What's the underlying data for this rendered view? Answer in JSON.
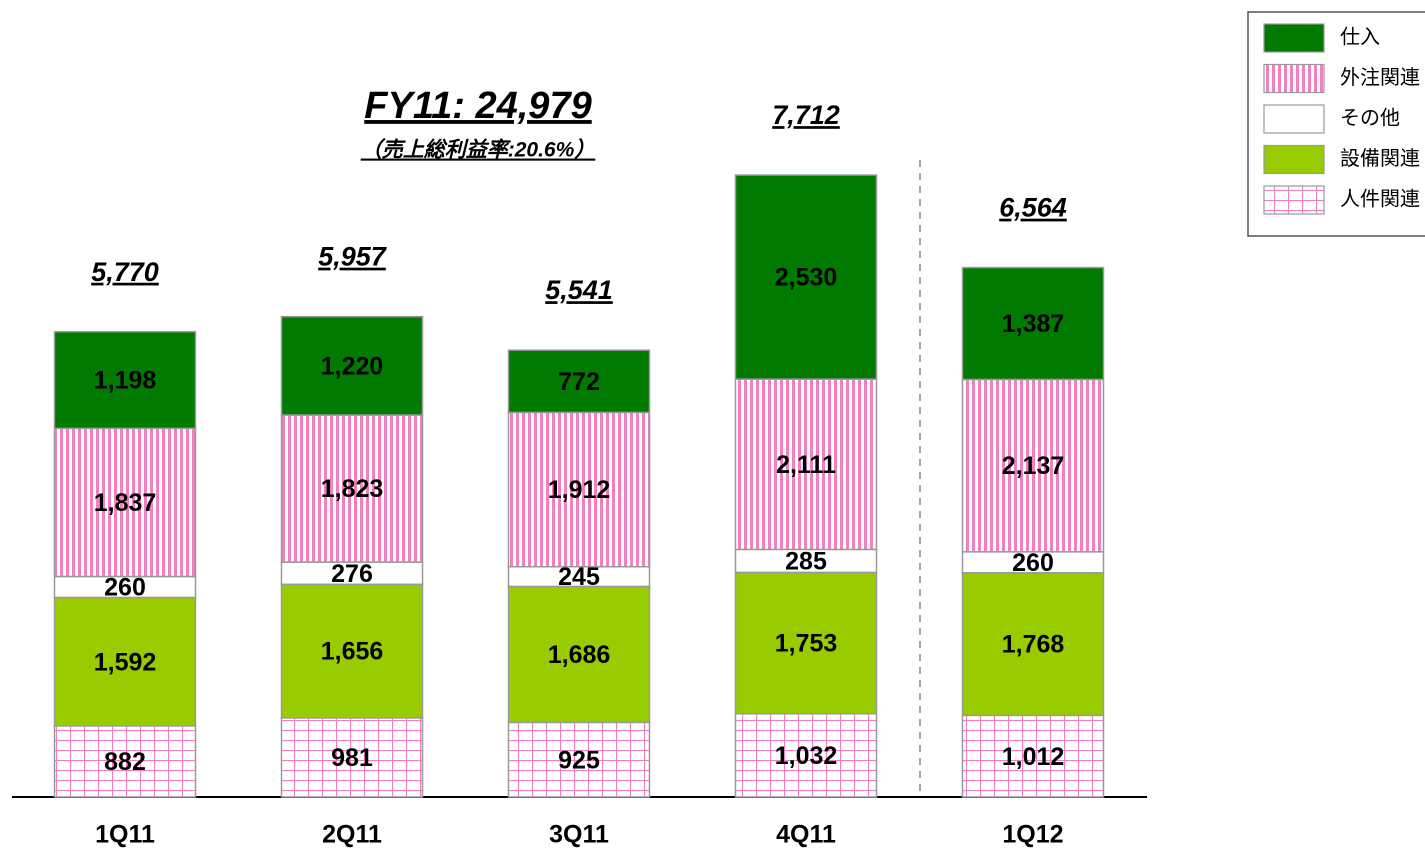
{
  "chart_data": {
    "type": "stacked-bar",
    "annotation": "FY11: 24,979",
    "annotation_sub": "（売上総利益率:20.6%）",
    "categories": [
      "1Q11",
      "2Q11",
      "3Q11",
      "4Q11",
      "1Q12"
    ],
    "series": [
      {
        "name": "人件関連",
        "color": "#f080c0",
        "values": [
          882,
          981,
          925,
          1032,
          1012
        ],
        "value_labels": [
          "882",
          "981",
          "925",
          "1,032",
          "1,012"
        ]
      },
      {
        "name": "設備関連",
        "color": "#99cc00",
        "values": [
          1592,
          1656,
          1686,
          1753,
          1768
        ],
        "value_labels": [
          "1,592",
          "1,656",
          "1,686",
          "1,753",
          "1,768"
        ]
      },
      {
        "name": "その他",
        "color": "#ffffff",
        "values": [
          260,
          276,
          245,
          285,
          260
        ],
        "value_labels": [
          "260",
          "276",
          "245",
          "285",
          "260"
        ]
      },
      {
        "name": "外注関連",
        "color": "#f080c0",
        "values": [
          1837,
          1823,
          1912,
          2111,
          2137
        ],
        "value_labels": [
          "1,837",
          "1,823",
          "1,912",
          "2,111",
          "2,137"
        ]
      },
      {
        "name": "仕入",
        "color": "#007a00",
        "values": [
          1198,
          1220,
          772,
          2530,
          1387
        ],
        "value_labels": [
          "1,198",
          "1,220",
          "772",
          "2,530",
          "1,387"
        ]
      }
    ],
    "totals": [
      5770,
      5957,
      5541,
      7712,
      6564
    ],
    "total_labels": [
      "5,770",
      "5,957",
      "5,541",
      "7,712",
      "6,564"
    ]
  }
}
